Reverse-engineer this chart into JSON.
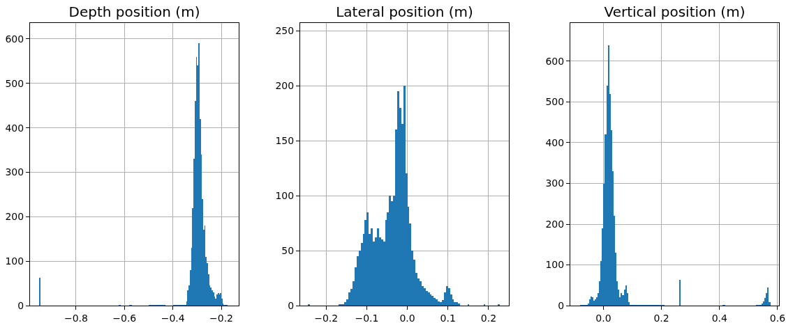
{
  "chart_data": [
    {
      "type": "histogram",
      "title": "Depth position (m)",
      "color": "#1f77b4",
      "grid": true,
      "bins": [
        -0.952,
        -0.948,
        -0.625,
        -0.615,
        -0.58,
        -0.57,
        -0.5,
        -0.43,
        -0.4,
        -0.35,
        -0.345,
        -0.34,
        -0.335,
        -0.33,
        -0.325,
        -0.32,
        -0.315,
        -0.31,
        -0.305,
        -0.3,
        -0.295,
        -0.29,
        -0.285,
        -0.28,
        -0.275,
        -0.27,
        -0.265,
        -0.26,
        -0.255,
        -0.25,
        -0.245,
        -0.24,
        -0.235,
        -0.23,
        -0.225,
        -0.22,
        -0.215,
        -0.21,
        -0.205,
        -0.2,
        -0.195,
        -0.19,
        -0.185,
        -0.175
      ],
      "values": [
        63,
        0,
        1,
        0,
        1,
        0,
        1,
        0,
        1,
        2,
        10,
        35,
        45,
        80,
        130,
        220,
        330,
        460,
        560,
        540,
        590,
        420,
        340,
        240,
        170,
        180,
        110,
        95,
        70,
        45,
        40,
        35,
        30,
        20,
        15,
        25,
        28,
        25,
        28,
        15,
        5,
        2,
        2
      ],
      "xlim": [
        -0.99,
        -0.128
      ],
      "xticks": [
        {
          "value": -0.8,
          "label": "−0.8"
        },
        {
          "value": -0.6,
          "label": "−0.6"
        },
        {
          "value": -0.4,
          "label": "−0.4"
        },
        {
          "value": -0.2,
          "label": "−0.2"
        }
      ],
      "ylim": [
        0,
        636
      ],
      "yticks": [
        0,
        100,
        200,
        300,
        400,
        500,
        600
      ]
    },
    {
      "type": "histogram",
      "title": "Lateral position (m)",
      "color": "#1f77b4",
      "grid": true,
      "bins": [
        -0.245,
        -0.24,
        -0.17,
        -0.155,
        -0.15,
        -0.145,
        -0.14,
        -0.135,
        -0.13,
        -0.125,
        -0.12,
        -0.115,
        -0.11,
        -0.105,
        -0.1,
        -0.095,
        -0.09,
        -0.085,
        -0.08,
        -0.075,
        -0.07,
        -0.065,
        -0.06,
        -0.055,
        -0.05,
        -0.045,
        -0.04,
        -0.035,
        -0.03,
        -0.025,
        -0.02,
        -0.015,
        -0.01,
        -0.005,
        0,
        0.005,
        0.01,
        0.015,
        0.02,
        0.025,
        0.03,
        0.035,
        0.04,
        0.045,
        0.05,
        0.055,
        0.06,
        0.065,
        0.07,
        0.075,
        0.08,
        0.085,
        0.09,
        0.095,
        0.1,
        0.105,
        0.11,
        0.115,
        0.12,
        0.125,
        0.13,
        0.148,
        0.152,
        0.188,
        0.192,
        0.223,
        0.227
      ],
      "values": [
        1,
        0,
        1,
        3,
        6,
        12,
        15,
        22,
        35,
        45,
        50,
        57,
        65,
        78,
        85,
        65,
        70,
        58,
        62,
        70,
        62,
        60,
        58,
        78,
        85,
        100,
        95,
        100,
        160,
        195,
        180,
        165,
        200,
        120,
        90,
        75,
        50,
        42,
        30,
        25,
        22,
        18,
        16,
        13,
        12,
        10,
        9,
        7,
        6,
        4,
        3,
        5,
        12,
        18,
        16,
        10,
        6,
        3,
        3,
        2,
        0,
        1,
        0,
        1,
        0,
        1
      ],
      "xlim": [
        -0.264,
        0.25
      ],
      "xticks": [
        {
          "value": -0.2,
          "label": "−0.2"
        },
        {
          "value": -0.1,
          "label": "−0.1"
        },
        {
          "value": 0,
          "label": "0.0"
        },
        0.1,
        0.2
      ],
      "ylim": [
        0,
        257
      ],
      "yticks": [
        0,
        50,
        100,
        150,
        200,
        250
      ]
    },
    {
      "type": "histogram",
      "title": "Vertical position (m)",
      "color": "#1f77b4",
      "grid": true,
      "bins": [
        -0.08,
        -0.055,
        -0.05,
        -0.045,
        -0.04,
        -0.035,
        -0.03,
        -0.025,
        -0.02,
        -0.015,
        -0.01,
        -0.005,
        0,
        0.005,
        0.01,
        0.015,
        0.02,
        0.025,
        0.03,
        0.035,
        0.04,
        0.045,
        0.05,
        0.055,
        0.06,
        0.065,
        0.07,
        0.075,
        0.08,
        0.085,
        0.09,
        0.095,
        0.21,
        0.262,
        0.266,
        0.41,
        0.42,
        0.525,
        0.545,
        0.55,
        0.555,
        0.56,
        0.565,
        0.57,
        0.575
      ],
      "values": [
        1,
        5,
        15,
        22,
        20,
        12,
        15,
        20,
        30,
        60,
        110,
        190,
        300,
        420,
        540,
        640,
        520,
        430,
        330,
        220,
        130,
        60,
        40,
        20,
        30,
        25,
        40,
        50,
        30,
        8,
        2,
        1,
        0,
        63,
        0,
        1,
        0,
        2,
        5,
        10,
        18,
        30,
        45,
        8
      ],
      "xlim": [
        -0.114,
        0.605
      ],
      "xticks": [
        {
          "value": 0,
          "label": "0.0"
        },
        0.2,
        0.4,
        0.6
      ],
      "ylim": [
        0,
        694
      ],
      "yticks": [
        0,
        100,
        200,
        300,
        400,
        500,
        600
      ]
    }
  ]
}
